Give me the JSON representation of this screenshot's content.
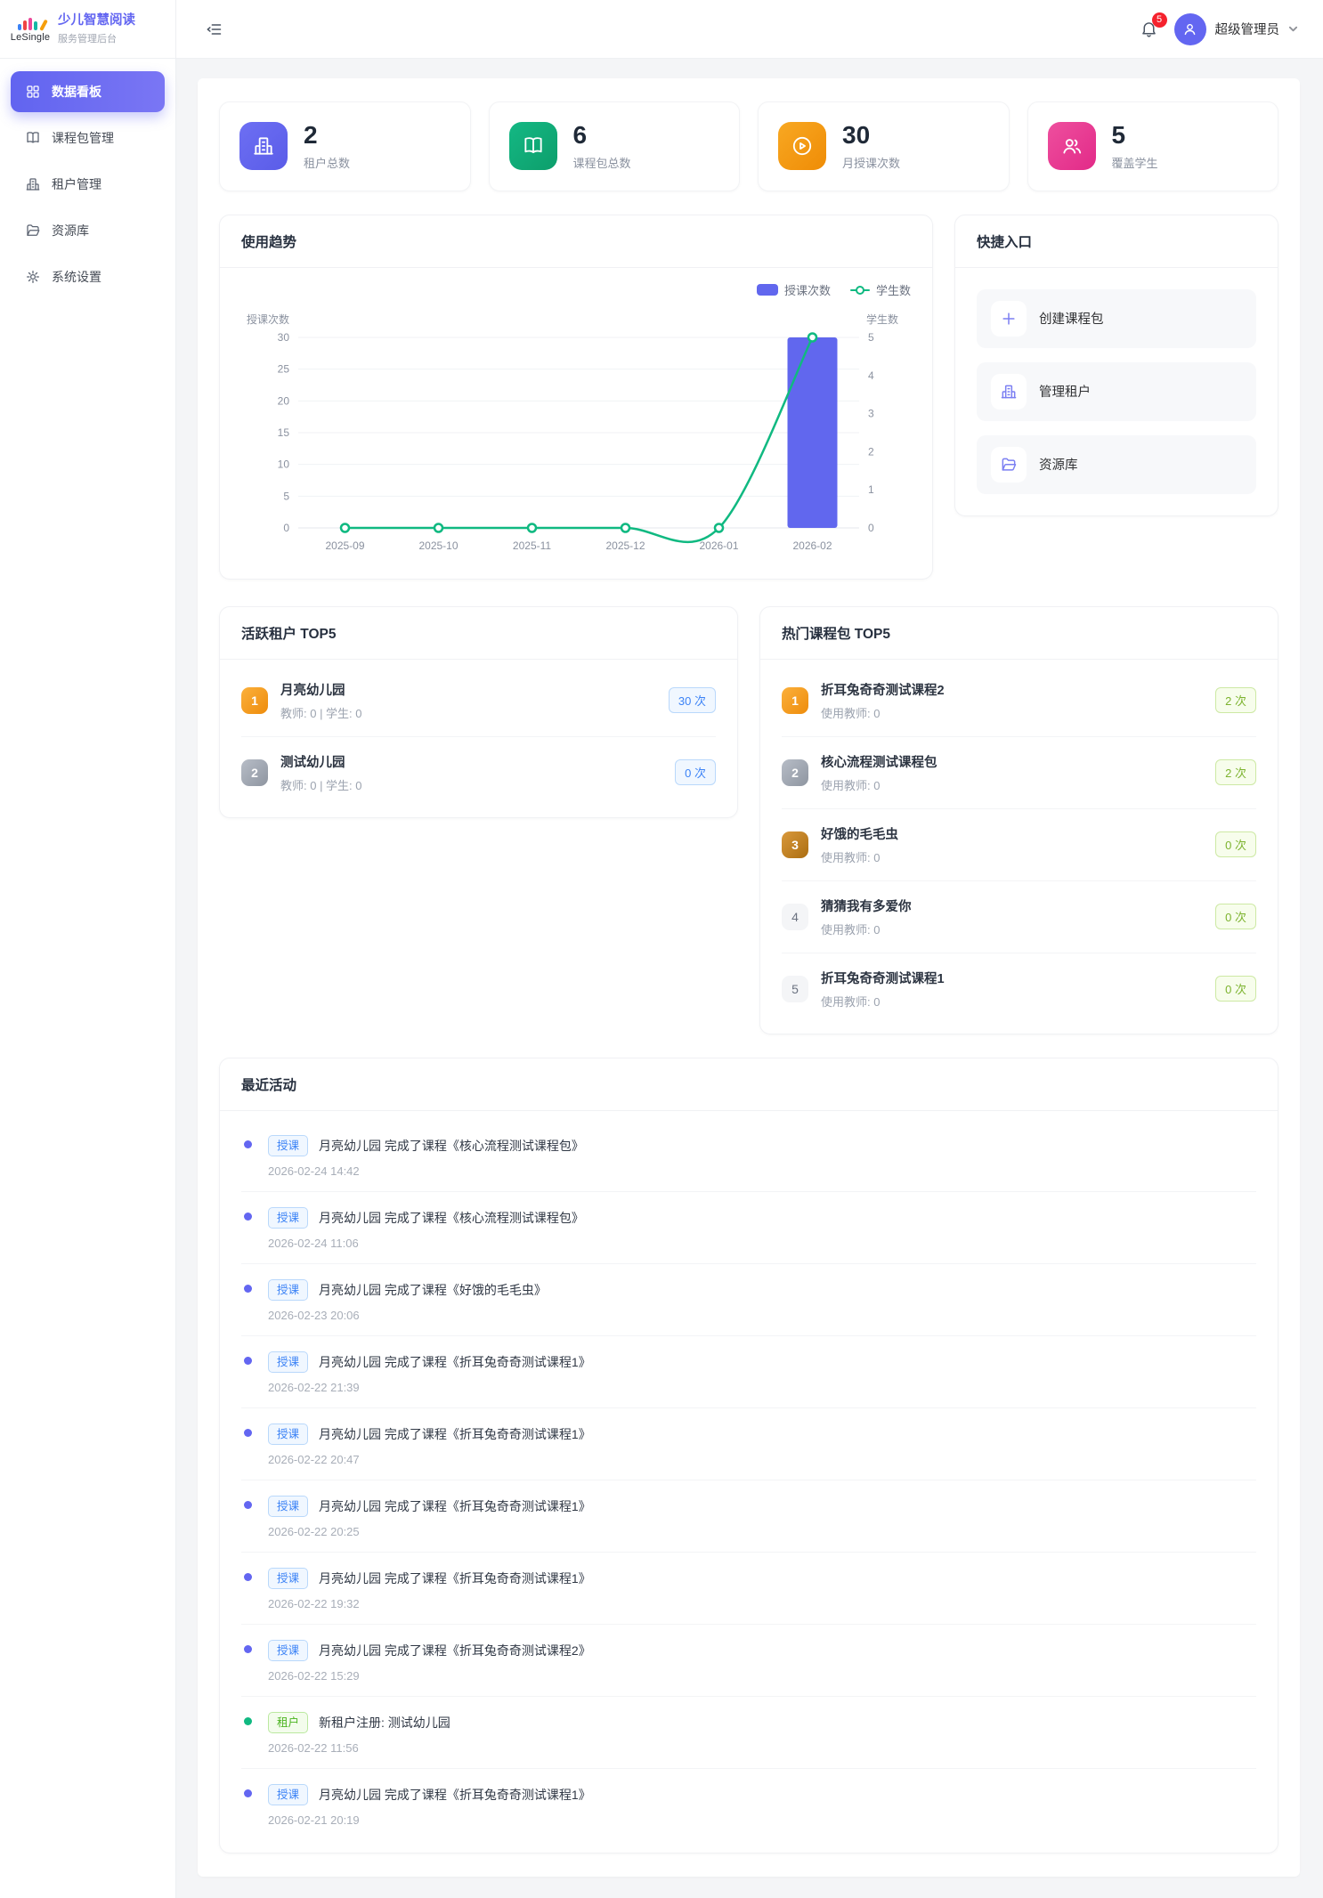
{
  "sidebar": {
    "brand": {
      "logo_text": "LeSingle",
      "title": "少儿智慧阅读",
      "subtitle": "服务管理后台"
    },
    "items": [
      {
        "label": "数据看板",
        "icon": "dashboard-grid-icon",
        "active": true
      },
      {
        "label": "课程包管理",
        "icon": "book-icon",
        "active": false
      },
      {
        "label": "租户管理",
        "icon": "building-icon",
        "active": false
      },
      {
        "label": "资源库",
        "icon": "folder-icon",
        "active": false
      },
      {
        "label": "系统设置",
        "icon": "gear-icon",
        "active": false
      }
    ]
  },
  "header": {
    "notification_count": "5",
    "user_name": "超级管理员"
  },
  "stats": [
    {
      "value": "2",
      "label": "租户总数",
      "icon": "building-icon",
      "color": "#6366f1"
    },
    {
      "value": "6",
      "label": "课程包总数",
      "icon": "book-open-icon",
      "color": "#10b981"
    },
    {
      "value": "30",
      "label": "月授课次数",
      "icon": "play-circle-icon",
      "color": "#f59e0b"
    },
    {
      "value": "5",
      "label": "覆盖学生",
      "icon": "users-icon",
      "color": "#ec4899"
    }
  ],
  "trend": {
    "title": "使用趋势"
  },
  "chart_data": {
    "type": "bar+line combo",
    "categories": [
      "2025-09",
      "2025-10",
      "2025-11",
      "2025-12",
      "2026-01",
      "2026-02"
    ],
    "series": [
      {
        "name": "授课次数",
        "type": "bar",
        "axis": "left",
        "color": "#6167ee",
        "values": [
          0,
          0,
          0,
          0,
          0,
          30
        ]
      },
      {
        "name": "学生数",
        "type": "line",
        "axis": "right",
        "color": "#10b981",
        "values": [
          0,
          0,
          0,
          0,
          0,
          5
        ]
      }
    ],
    "left_axis": {
      "label": "授课次数",
      "min": 0,
      "max": 30,
      "step": 5
    },
    "right_axis": {
      "label": "学生数",
      "min": 0,
      "max": 5,
      "step": 1
    },
    "legend_position": "top-right",
    "grid": true
  },
  "quick_entry": {
    "title": "快捷入口",
    "items": [
      {
        "label": "创建课程包",
        "icon": "plus-icon"
      },
      {
        "label": "管理租户",
        "icon": "building-icon"
      },
      {
        "label": "资源库",
        "icon": "folder-icon"
      }
    ]
  },
  "active_tenants": {
    "title": "活跃租户 TOP5",
    "items": [
      {
        "rank": "1",
        "name": "月亮幼儿园",
        "meta": "教师: 0 | 学生: 0",
        "count": "30 次"
      },
      {
        "rank": "2",
        "name": "测试幼儿园",
        "meta": "教师: 0 | 学生: 0",
        "count": "0 次"
      }
    ]
  },
  "hot_packages": {
    "title": "热门课程包 TOP5",
    "items": [
      {
        "rank": "1",
        "name": "折耳兔奇奇测试课程2",
        "meta": "使用教师: 0",
        "count": "2 次"
      },
      {
        "rank": "2",
        "name": "核心流程测试课程包",
        "meta": "使用教师: 0",
        "count": "2 次"
      },
      {
        "rank": "3",
        "name": "好饿的毛毛虫",
        "meta": "使用教师: 0",
        "count": "0 次"
      },
      {
        "rank": "4",
        "name": "猜猜我有多爱你",
        "meta": "使用教师: 0",
        "count": "0 次"
      },
      {
        "rank": "5",
        "name": "折耳兔奇奇测试课程1",
        "meta": "使用教师: 0",
        "count": "0 次"
      }
    ]
  },
  "recent": {
    "title": "最近活动",
    "items": [
      {
        "tag": "授课",
        "type": "lesson",
        "text": "月亮幼儿园 完成了课程《核心流程测试课程包》",
        "time": "2026-02-24 14:42"
      },
      {
        "tag": "授课",
        "type": "lesson",
        "text": "月亮幼儿园 完成了课程《核心流程测试课程包》",
        "time": "2026-02-24 11:06"
      },
      {
        "tag": "授课",
        "type": "lesson",
        "text": "月亮幼儿园 完成了课程《好饿的毛毛虫》",
        "time": "2026-02-23 20:06"
      },
      {
        "tag": "授课",
        "type": "lesson",
        "text": "月亮幼儿园 完成了课程《折耳兔奇奇测试课程1》",
        "time": "2026-02-22 21:39"
      },
      {
        "tag": "授课",
        "type": "lesson",
        "text": "月亮幼儿园 完成了课程《折耳兔奇奇测试课程1》",
        "time": "2026-02-22 20:47"
      },
      {
        "tag": "授课",
        "type": "lesson",
        "text": "月亮幼儿园 完成了课程《折耳兔奇奇测试课程1》",
        "time": "2026-02-22 20:25"
      },
      {
        "tag": "授课",
        "type": "lesson",
        "text": "月亮幼儿园 完成了课程《折耳兔奇奇测试课程1》",
        "time": "2026-02-22 19:32"
      },
      {
        "tag": "授课",
        "type": "lesson",
        "text": "月亮幼儿园 完成了课程《折耳兔奇奇测试课程2》",
        "time": "2026-02-22 15:29"
      },
      {
        "tag": "租户",
        "type": "tenant",
        "text": "新租户注册: 测试幼儿园",
        "time": "2026-02-22 11:56"
      },
      {
        "tag": "授课",
        "type": "lesson",
        "text": "月亮幼儿园 完成了课程《折耳兔奇奇测试课程1》",
        "time": "2026-02-21 20:19"
      }
    ]
  }
}
